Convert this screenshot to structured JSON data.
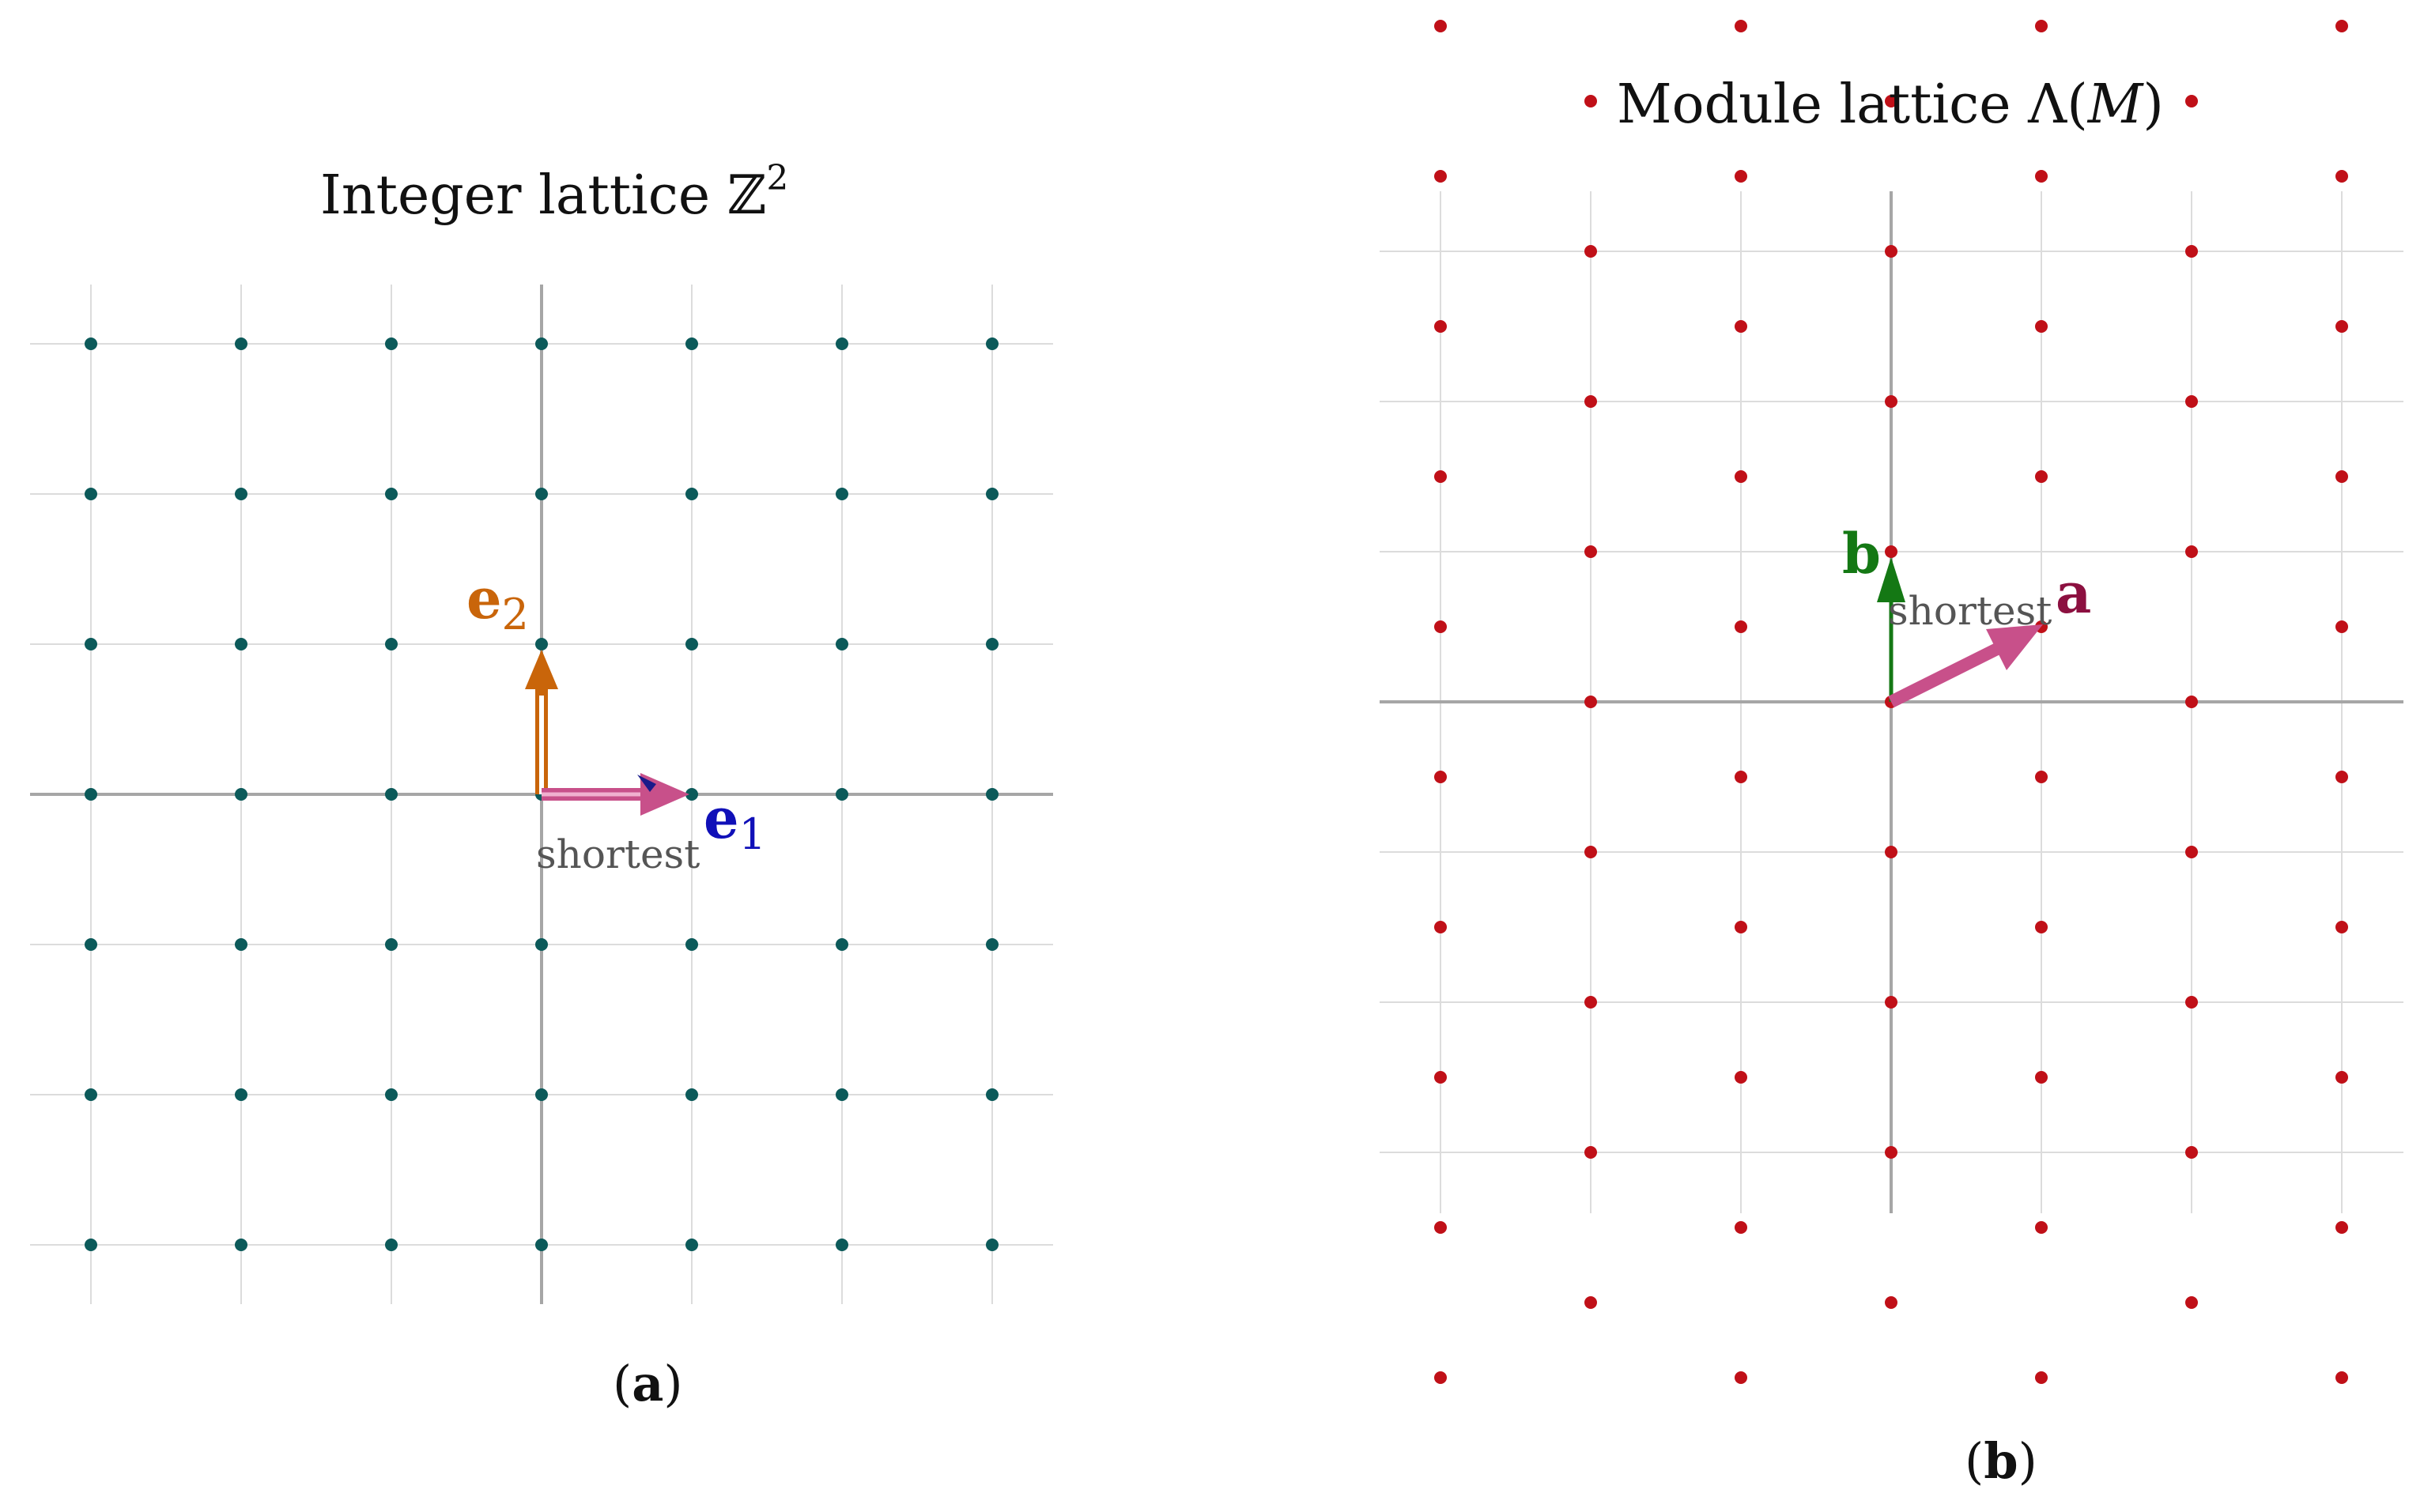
{
  "panel_a": {
    "title_main": "Integer lattice ",
    "title_symbol": "ℤ",
    "title_exp": "2",
    "caption_open": "(",
    "caption_letter": "a",
    "caption_close": ")",
    "shortest_label": "shortest",
    "e1": {
      "base": "e",
      "sub": "1",
      "color": "#1010b8",
      "vector": [
        1,
        0
      ]
    },
    "e2": {
      "base": "e",
      "sub": "2",
      "color": "#c9650a",
      "vector": [
        0,
        1
      ]
    },
    "shortest_vector": [
      1,
      0
    ],
    "shortest_color": "#c8508a",
    "point_color": "#0c5a5a",
    "grid_range": [
      -3,
      3
    ],
    "points_range": [
      -3,
      3
    ]
  },
  "panel_b": {
    "title_main": "Module lattice ",
    "title_symbol": "Λ",
    "title_arg_open": "(",
    "title_arg": "M",
    "title_arg_close": ")",
    "caption_open": "(",
    "caption_letter": "b",
    "caption_close": ")",
    "shortest_label": "shortest",
    "a": {
      "label": "a",
      "color": "#8c1040",
      "vector": [
        1,
        0.5
      ]
    },
    "b": {
      "label": "b",
      "color": "#147814",
      "vector": [
        0,
        1
      ]
    },
    "shortest_color": "#c8508a",
    "point_color": "#c01018",
    "grid_x_range": [
      -3,
      3
    ],
    "grid_y_range": [
      -3,
      3
    ],
    "points_x_range": [
      -3,
      3
    ],
    "points_y_range": [
      -4.5,
      4.5
    ]
  }
}
